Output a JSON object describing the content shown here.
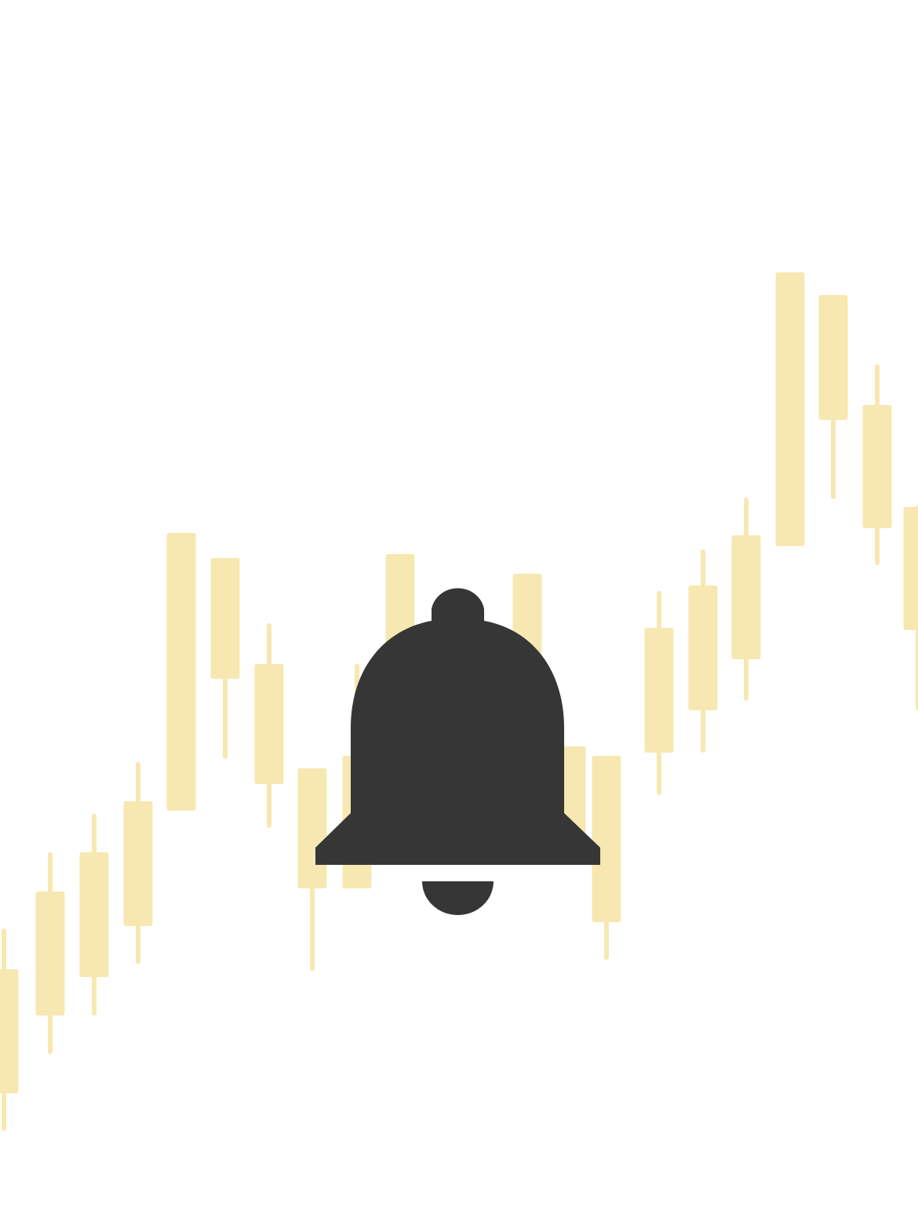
{
  "illustration": {
    "icon": "bell-icon",
    "background_pattern": "candlestick-chart",
    "colors": {
      "background": "#ffffff",
      "candles": "#f7e8b1",
      "bell": "#363636"
    }
  }
}
